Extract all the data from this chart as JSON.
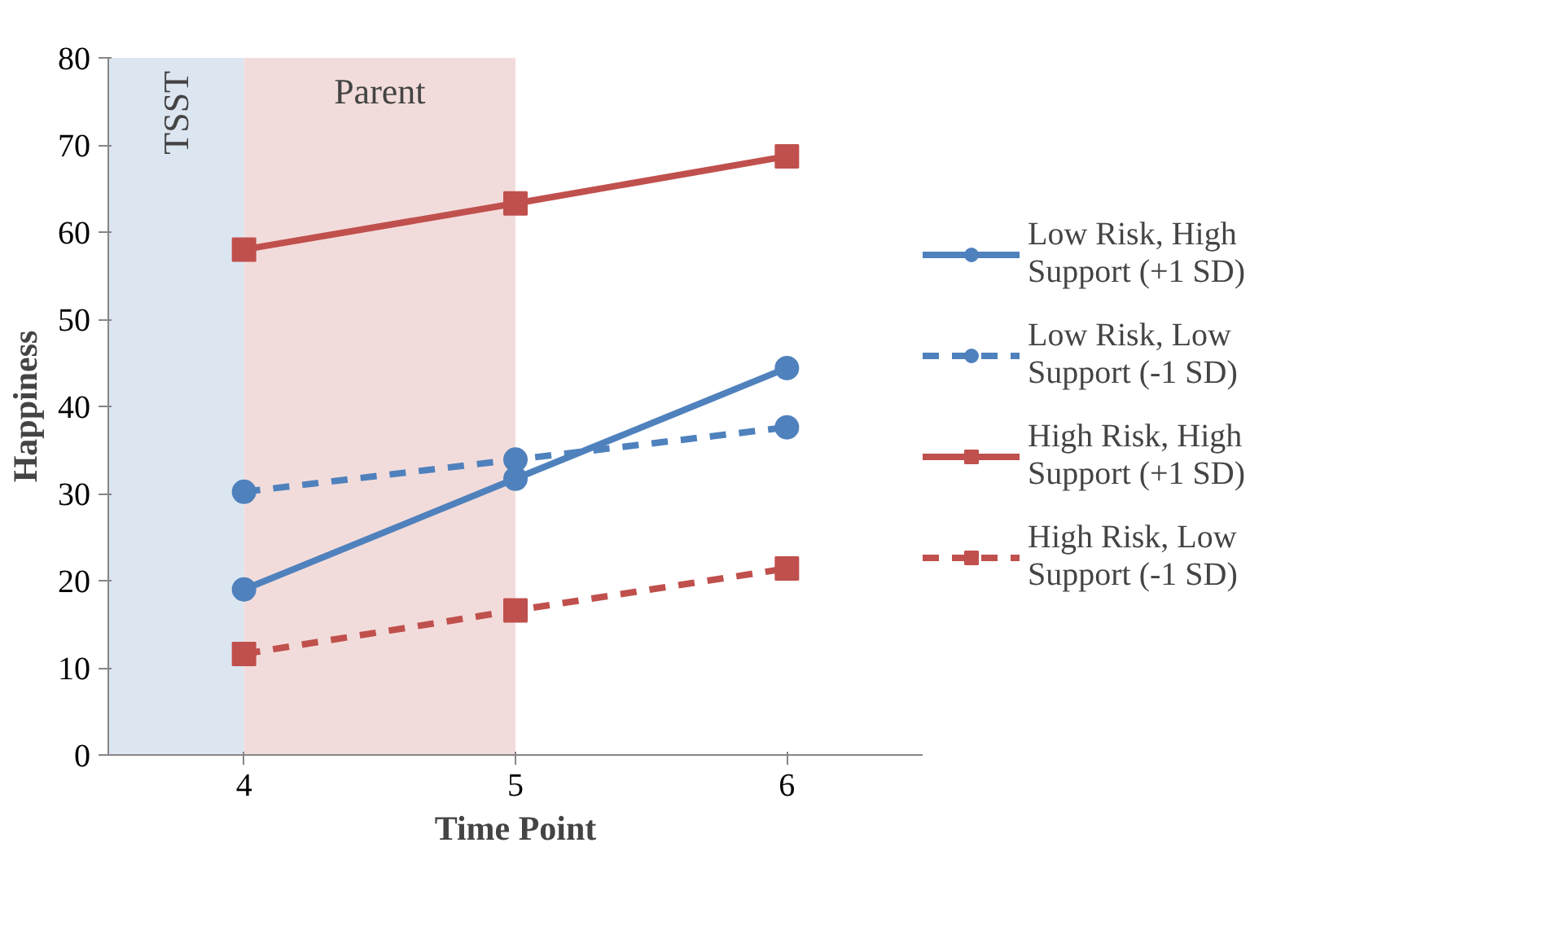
{
  "chart_data": {
    "type": "line",
    "xlabel": "Time Point",
    "ylabel": "Happiness",
    "x": [
      4,
      5,
      6
    ],
    "xlim": [
      3.5,
      6.5
    ],
    "xticks": [
      4,
      5,
      6
    ],
    "ylim": [
      0,
      80
    ],
    "yticks": [
      0,
      10,
      20,
      30,
      40,
      50,
      60,
      70,
      80
    ],
    "grid": false,
    "legend": "right",
    "bands": [
      {
        "axis": "x",
        "from": 3.5,
        "to": 4,
        "label": "TSST",
        "color": "#dce6f1"
      },
      {
        "axis": "x",
        "from": 4,
        "to": 5,
        "label": "Parent",
        "color": "#f2dcdb"
      }
    ],
    "series": [
      {
        "name": "Low Risk, High Support (+1 SD)",
        "color": "#4f81bd",
        "marker": "circle",
        "line_style": "solid",
        "values": [
          19.0,
          31.7,
          44.4
        ]
      },
      {
        "name": "Low Risk, Low Support (-1 SD)",
        "color": "#4f81bd",
        "marker": "circle",
        "line_style": "dashed",
        "values": [
          30.2,
          33.9,
          37.6
        ]
      },
      {
        "name": "High Risk, High Support (+1 SD)",
        "color": "#c0504d",
        "marker": "square",
        "line_style": "solid",
        "values": [
          58.0,
          63.3,
          68.7
        ]
      },
      {
        "name": "High Risk, Low Support (-1 SD)",
        "color": "#c0504d",
        "marker": "square",
        "line_style": "dashed",
        "values": [
          11.6,
          16.6,
          21.4
        ]
      }
    ]
  }
}
